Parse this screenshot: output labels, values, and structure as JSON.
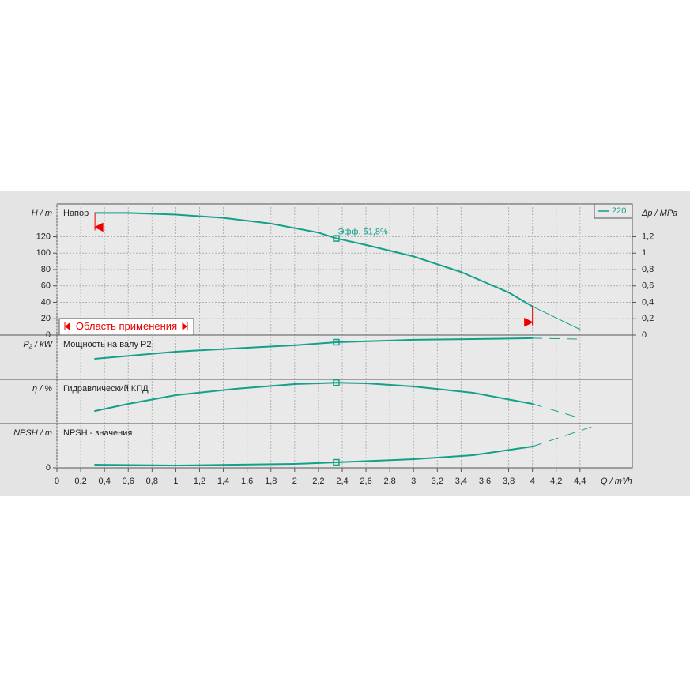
{
  "chart_data": [
    {
      "type": "line",
      "title": "Напор",
      "y_label": "H / m",
      "y2_label": "Δp / MPa",
      "x": [
        0.32,
        0.6,
        1,
        1.4,
        1.8,
        2.2,
        2.35,
        2.6,
        3,
        3.4,
        3.8,
        4,
        4.2,
        4.4
      ],
      "series": [
        {
          "name": "220",
          "color": "#13a08a",
          "values": [
            149,
            149,
            147,
            143,
            136,
            125,
            118,
            110,
            96,
            77,
            52,
            35,
            21,
            7
          ]
        }
      ],
      "xlim": [
        0,
        4.84
      ],
      "ylim": [
        0,
        160
      ],
      "yticks": [
        0,
        20,
        40,
        60,
        80,
        100,
        120
      ],
      "y2lim": [
        0,
        1.6
      ],
      "y2ticks": [
        0,
        {
          "value": 0.2,
          "label": "0,2"
        },
        {
          "value": 0.4,
          "label": "0,4"
        },
        {
          "value": 0.6,
          "label": "0,6"
        },
        {
          "value": 0.8,
          "label": "0,8"
        },
        1,
        {
          "value": 1.2,
          "label": "1,2"
        }
      ],
      "grid": true,
      "legend": "top-right",
      "beyond_range_style": "thin",
      "duty_point_q": 2.35,
      "annotation": "Эфф.  51,8%",
      "application_range": {
        "label": "Область применения",
        "q": [
          0.32,
          4
        ]
      }
    },
    {
      "type": "line",
      "title": "Мощность на валу P2",
      "y_label": "P₂ / kW",
      "x": [
        0.32,
        1,
        1.6,
        2,
        2.35,
        3,
        3.5,
        4,
        4.4
      ],
      "series": [
        {
          "name": "220",
          "color": "#13a08a",
          "values": [
            0.93,
            1.25,
            1.43,
            1.54,
            1.68,
            1.79,
            1.82,
            1.86,
            1.82
          ]
        }
      ],
      "xlim": [
        0,
        4.84
      ],
      "ylim": [
        0,
        2
      ],
      "beyond_range_style": "dashed",
      "duty_point_q": 2.35,
      "application_range": {
        "q": [
          0.32,
          4
        ]
      }
    },
    {
      "type": "line",
      "title": "Гидравлический КПД",
      "y_label": "η / %",
      "x": [
        0.32,
        0.6,
        1,
        1.5,
        2,
        2.35,
        2.6,
        3,
        3.5,
        4,
        4.4
      ],
      "series": [
        {
          "name": "220",
          "color": "#13a08a",
          "values": [
            16,
            25,
            36,
            44,
            50,
            51.8,
            51,
            47,
            39,
            25,
            7
          ]
        }
      ],
      "xlim": [
        0,
        4.84
      ],
      "ylim": [
        0,
        56
      ],
      "beyond_range_style": "dashed",
      "duty_point_q": 2.35,
      "application_range": {
        "q": [
          0.32,
          4
        ]
      }
    },
    {
      "type": "line",
      "title": "NPSH - значения",
      "y_label": "NPSH / m",
      "x_label": "Q / m³/h",
      "x": [
        0.32,
        1,
        1.5,
        2,
        2.35,
        3,
        3.5,
        4,
        4.5
      ],
      "series": [
        {
          "name": "220",
          "color": "#13a08a",
          "values": [
            1,
            0.75,
            1,
            1.25,
            1.75,
            2.75,
            4,
            6.75,
            13
          ]
        }
      ],
      "xlim": [
        0,
        4.84
      ],
      "ylim": [
        0,
        14
      ],
      "yticks": [
        0
      ],
      "xticks": [
        0,
        {
          "value": 0.2,
          "label": "0,2"
        },
        {
          "value": 0.4,
          "label": "0,4"
        },
        {
          "value": 0.6,
          "label": "0,6"
        },
        {
          "value": 0.8,
          "label": "0,8"
        },
        1,
        {
          "value": 1.2,
          "label": "1,2"
        },
        {
          "value": 1.4,
          "label": "1,4"
        },
        {
          "value": 1.6,
          "label": "1,6"
        },
        {
          "value": 1.8,
          "label": "1,8"
        },
        2,
        {
          "value": 2.2,
          "label": "2,2"
        },
        {
          "value": 2.4,
          "label": "2,4"
        },
        {
          "value": 2.6,
          "label": "2,6"
        },
        {
          "value": 2.8,
          "label": "2,8"
        },
        3,
        {
          "value": 3.2,
          "label": "3,2"
        },
        {
          "value": 3.4,
          "label": "3,4"
        },
        {
          "value": 3.6,
          "label": "3,6"
        },
        {
          "value": 3.8,
          "label": "3,8"
        },
        4,
        {
          "value": 4.2,
          "label": "4,2"
        },
        {
          "value": 4.4,
          "label": "4,4"
        }
      ],
      "beyond_range_style": "dashed",
      "duty_point_q": 2.35,
      "application_range": {
        "q": [
          0.32,
          4
        ]
      }
    }
  ]
}
